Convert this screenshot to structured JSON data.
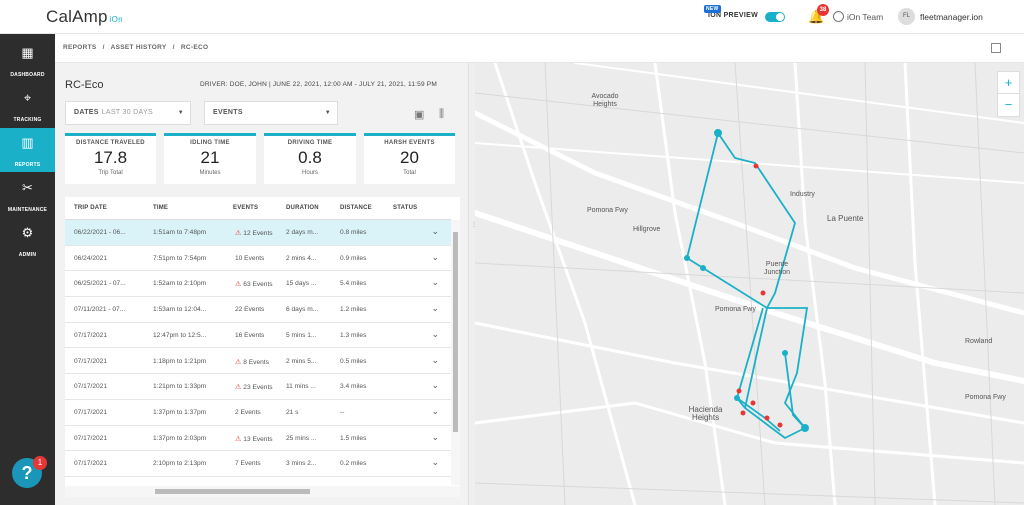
{
  "header": {
    "logo": "CalAmp",
    "logo_sub": "iOn",
    "new_badge": "NEW",
    "preview_label": "iON PREVIEW",
    "notifications": "38",
    "team_label": "iOn Team",
    "avatar_initials": "FL",
    "username": "fleetmanager.ion"
  },
  "sidebar": {
    "items": [
      {
        "label": "DASHBOARD",
        "icon": "dashboard-icon"
      },
      {
        "label": "TRACKING",
        "icon": "pin-icon"
      },
      {
        "label": "REPORTS",
        "icon": "reports-icon"
      },
      {
        "label": "MAINTENANCE",
        "icon": "wrench-icon"
      },
      {
        "label": "ADMIN",
        "icon": "gear-icon"
      }
    ],
    "help_label": "?",
    "help_badge": "1"
  },
  "breadcrumb": [
    "REPORTS",
    "/",
    "ASSET HISTORY",
    "/",
    "RC-ECO"
  ],
  "report": {
    "title": "RC-Eco",
    "driver_info": "DRIVER: DOE, JOHN  |  JUNE 22, 2021, 12:00 AM - JULY 21, 2021, 11:59 PM",
    "dates_label": "DATES",
    "dates_value": "LAST 30 DAYS",
    "events_label": "EVENTS"
  },
  "cards": [
    {
      "label": "DISTANCE TRAVELED",
      "value": "17.8",
      "unit": "Trip Total"
    },
    {
      "label": "IDLING TIME",
      "value": "21",
      "unit": "Minutes"
    },
    {
      "label": "DRIVING TIME",
      "value": "0.8",
      "unit": "Hours"
    },
    {
      "label": "HARSH EVENTS",
      "value": "20",
      "unit": "Total"
    }
  ],
  "table": {
    "columns": [
      "TRIP DATE",
      "TIME",
      "EVENTS",
      "DURATION",
      "DISTANCE",
      "STATUS"
    ],
    "rows": [
      {
        "date": "06/22/2021 - 06...",
        "time": "1:51am to 7:48pm",
        "events": "12 Events",
        "warn": true,
        "duration": "2 days m...",
        "distance": "0.8 miles"
      },
      {
        "date": "06/24/2021",
        "time": "7:51pm to 7:54pm",
        "events": "10 Events",
        "warn": false,
        "duration": "2 mins 4...",
        "distance": "0.9 miles"
      },
      {
        "date": "06/25/2021 - 07...",
        "time": "1:52am to 2:10pm",
        "events": "63 Events",
        "warn": true,
        "duration": "15 days ...",
        "distance": "5.4 miles"
      },
      {
        "date": "07/11/2021 - 07...",
        "time": "1:53am to 12:04...",
        "events": "22 Events",
        "warn": false,
        "duration": "6 days m...",
        "distance": "1.2 miles"
      },
      {
        "date": "07/17/2021",
        "time": "12:47pm to 12:5...",
        "events": "16 Events",
        "warn": false,
        "duration": "5 mins 1...",
        "distance": "1.3 miles"
      },
      {
        "date": "07/17/2021",
        "time": "1:18pm to 1:21pm",
        "events": "8 Events",
        "warn": true,
        "duration": "2 mins 5...",
        "distance": "0.5 miles"
      },
      {
        "date": "07/17/2021",
        "time": "1:21pm to 1:33pm",
        "events": "23 Events",
        "warn": true,
        "duration": "11 mins ...",
        "distance": "3.4 miles"
      },
      {
        "date": "07/17/2021",
        "time": "1:37pm to 1:37pm",
        "events": "2 Events",
        "warn": false,
        "duration": "21 s",
        "distance": "--"
      },
      {
        "date": "07/17/2021",
        "time": "1:37pm to 2:03pm",
        "events": "13 Events",
        "warn": true,
        "duration": "25 mins ...",
        "distance": "1.5 miles"
      },
      {
        "date": "07/17/2021",
        "time": "2:10pm to 2:13pm",
        "events": "7 Events",
        "warn": false,
        "duration": "3 mins 2...",
        "distance": "0.2 miles"
      }
    ]
  },
  "map": {
    "labels": [
      "Avocado Heights",
      "Industry",
      "La Puente",
      "Hillgrove",
      "Puente Junction",
      "Pomona Fwy",
      "Rowland",
      "Hacienda Heights",
      "Pomona Fwy",
      "Pomona Fwy"
    ],
    "zoom_in": "+",
    "zoom_out": "−",
    "route_color": "#1ab0c8",
    "event_color": "#e63737"
  }
}
